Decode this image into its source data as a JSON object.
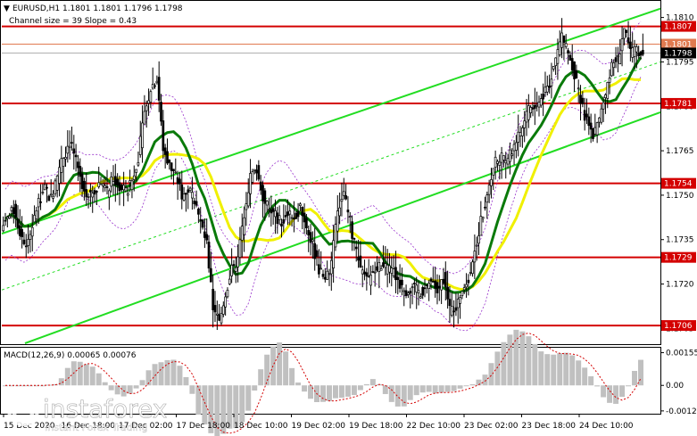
{
  "header": {
    "symbol_line": "EURUSD,H1  1.1801 1.1801 1.1796 1.1798",
    "channel_line": "Channel size = 39 Slope = 0.43",
    "arrow_color": "#000000"
  },
  "chart_data": [
    {
      "type": "candlestick",
      "symbol": "EURUSD",
      "timeframe": "H1",
      "ohlc_last": {
        "open": 1.1801,
        "high": 1.1801,
        "low": 1.1796,
        "close": 1.1798
      },
      "ylim": [
        1.17,
        1.1815
      ],
      "y_ticks": [
        1.181,
        1.1795,
        1.178,
        1.1765,
        1.175,
        1.1735,
        1.172,
        1.1705
      ],
      "x_ticks": [
        "15 Dec 2020",
        "16 Dec 18:00",
        "17 Dec 02:00",
        "17 Dec 18:00",
        "18 Dec 10:00",
        "19 Dec 02:00",
        "19 Dec 18:00",
        "22 Dec 10:00",
        "23 Dec 02:00",
        "23 Dec 18:00",
        "24 Dec 10:00"
      ],
      "levels": [
        {
          "value": 1.1807,
          "label": "1.1807",
          "color": "#d40000"
        },
        {
          "value": 1.1781,
          "label": "1.1781",
          "color": "#d40000"
        },
        {
          "value": 1.1754,
          "label": "1.1754",
          "color": "#d40000"
        },
        {
          "value": 1.1729,
          "label": "1.1729",
          "color": "#d40000"
        },
        {
          "value": 1.1706,
          "label": "1.1706",
          "color": "#d40000"
        }
      ],
      "current_price": {
        "value": 1.1798,
        "label": "1.1798"
      },
      "ask_line": {
        "value": 1.1801,
        "label": "1.1801"
      },
      "series": [
        {
          "name": "price",
          "kind": "close",
          "color": "#000000",
          "values": [
            1.1742,
            1.1745,
            1.1738,
            1.1733,
            1.174,
            1.1748,
            1.1752,
            1.1749,
            1.1756,
            1.1763,
            1.1768,
            1.1761,
            1.1754,
            1.175,
            1.1752,
            1.1755,
            1.1751,
            1.1756,
            1.1753,
            1.1751,
            1.1755,
            1.1763,
            1.1778,
            1.1786,
            1.179,
            1.1766,
            1.176,
            1.1757,
            1.175,
            1.1752,
            1.1749,
            1.1741,
            1.1733,
            1.1712,
            1.1707,
            1.1717,
            1.1725,
            1.1728,
            1.1744,
            1.1756,
            1.1759,
            1.175,
            1.1745,
            1.1743,
            1.1741,
            1.1744,
            1.1742,
            1.1746,
            1.174,
            1.1733,
            1.1725,
            1.1721,
            1.1727,
            1.1745,
            1.175,
            1.1741,
            1.173,
            1.1723,
            1.1721,
            1.1726,
            1.1726,
            1.1725,
            1.1724,
            1.172,
            1.1718,
            1.1719,
            1.1717,
            1.1718,
            1.1721,
            1.1718,
            1.1722,
            1.1711,
            1.1713,
            1.1718,
            1.1722,
            1.1732,
            1.1741,
            1.1751,
            1.176,
            1.1763,
            1.1761,
            1.1765,
            1.177,
            1.1775,
            1.178,
            1.178,
            1.1784,
            1.1788,
            1.1796,
            1.1804,
            1.1798,
            1.1791,
            1.1781,
            1.1775,
            1.177,
            1.1775,
            1.1784,
            1.1795,
            1.1796,
            1.1806,
            1.1798,
            1.1799,
            1.1798
          ]
        },
        {
          "name": "ma_fast",
          "color": "#0a7a0a"
        },
        {
          "name": "ma_slow",
          "color": "#f0f000"
        },
        {
          "name": "channel",
          "color": "#22dd22"
        }
      ],
      "grid": false
    },
    {
      "type": "bar",
      "title": "MACD(12,26,9) 0.00065 0.00076",
      "ylim": [
        -0.0013,
        0.0017
      ],
      "y_ticks": [
        0.00155,
        0.0,
        -0.00121
      ],
      "y_tick_labels": [
        "0.00155",
        "0.00",
        "-0.00121"
      ],
      "series": [
        {
          "name": "MACD",
          "color": "#c0c0c0"
        },
        {
          "name": "Signal",
          "color": "#d40000"
        }
      ]
    }
  ],
  "watermark": {
    "brand": "instaforex",
    "tagline": "Instant Forex Trading"
  }
}
